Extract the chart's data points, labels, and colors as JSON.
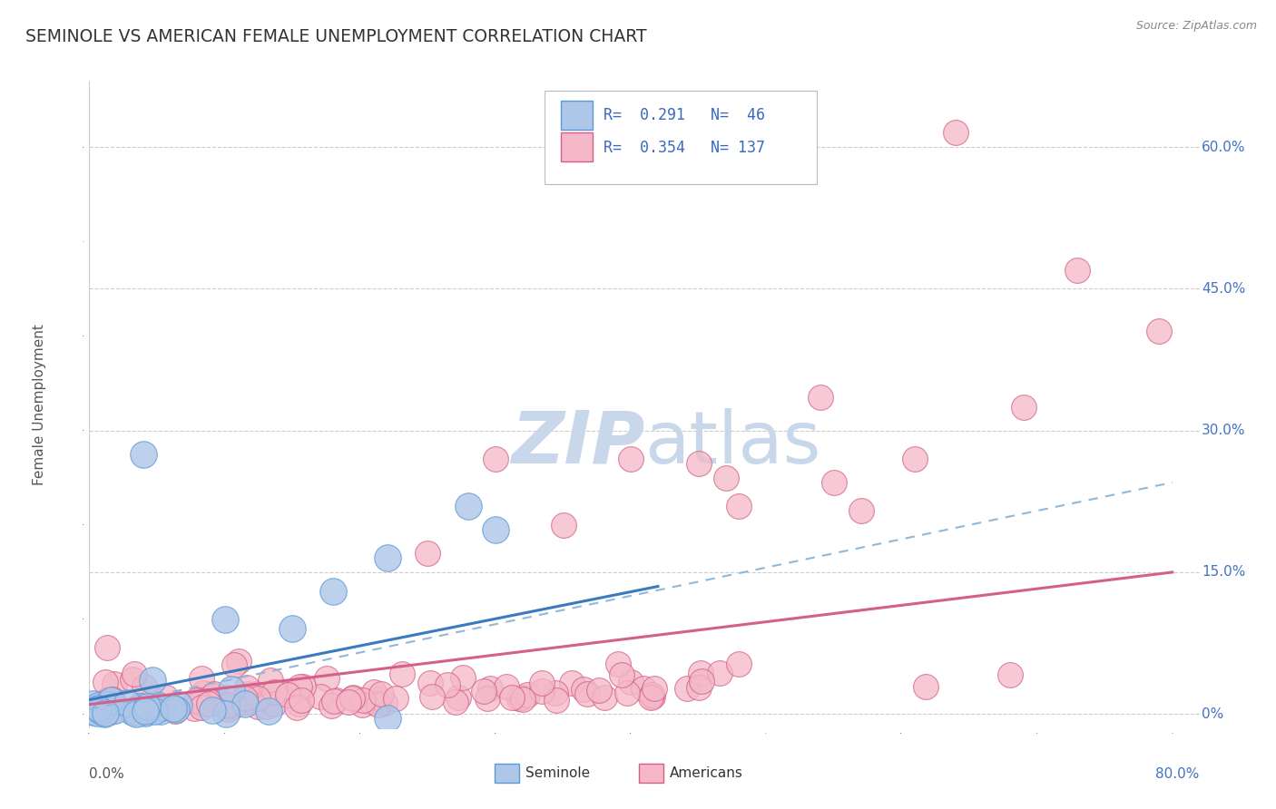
{
  "title": "SEMINOLE VS AMERICAN FEMALE UNEMPLOYMENT CORRELATION CHART",
  "source": "Source: ZipAtlas.com",
  "ylabel": "Female Unemployment",
  "xlim": [
    0.0,
    0.82
  ],
  "ylim": [
    -0.015,
    0.67
  ],
  "yticks": [
    0.0,
    0.15,
    0.3,
    0.45,
    0.6
  ],
  "ytick_right_labels": [
    "0%",
    "15.0%",
    "30.0%",
    "45.0%",
    "60.0%"
  ],
  "xtick_left_label": "0.0%",
  "xtick_right_label": "80.0%",
  "seminole_color": "#aec6e8",
  "seminole_edge": "#5b9bd5",
  "american_color": "#f4b8c8",
  "american_edge": "#d4608a",
  "seminole_line_color": "#3a7abf",
  "american_line_color": "#d4608a",
  "dashed_line_color": "#90b8d8",
  "legend_text_color": "#3a6abf",
  "watermark_color": "#c8d8ea",
  "background_color": "#ffffff",
  "grid_color": "#cccccc",
  "title_color": "#333333",
  "axis_label_color": "#555555"
}
